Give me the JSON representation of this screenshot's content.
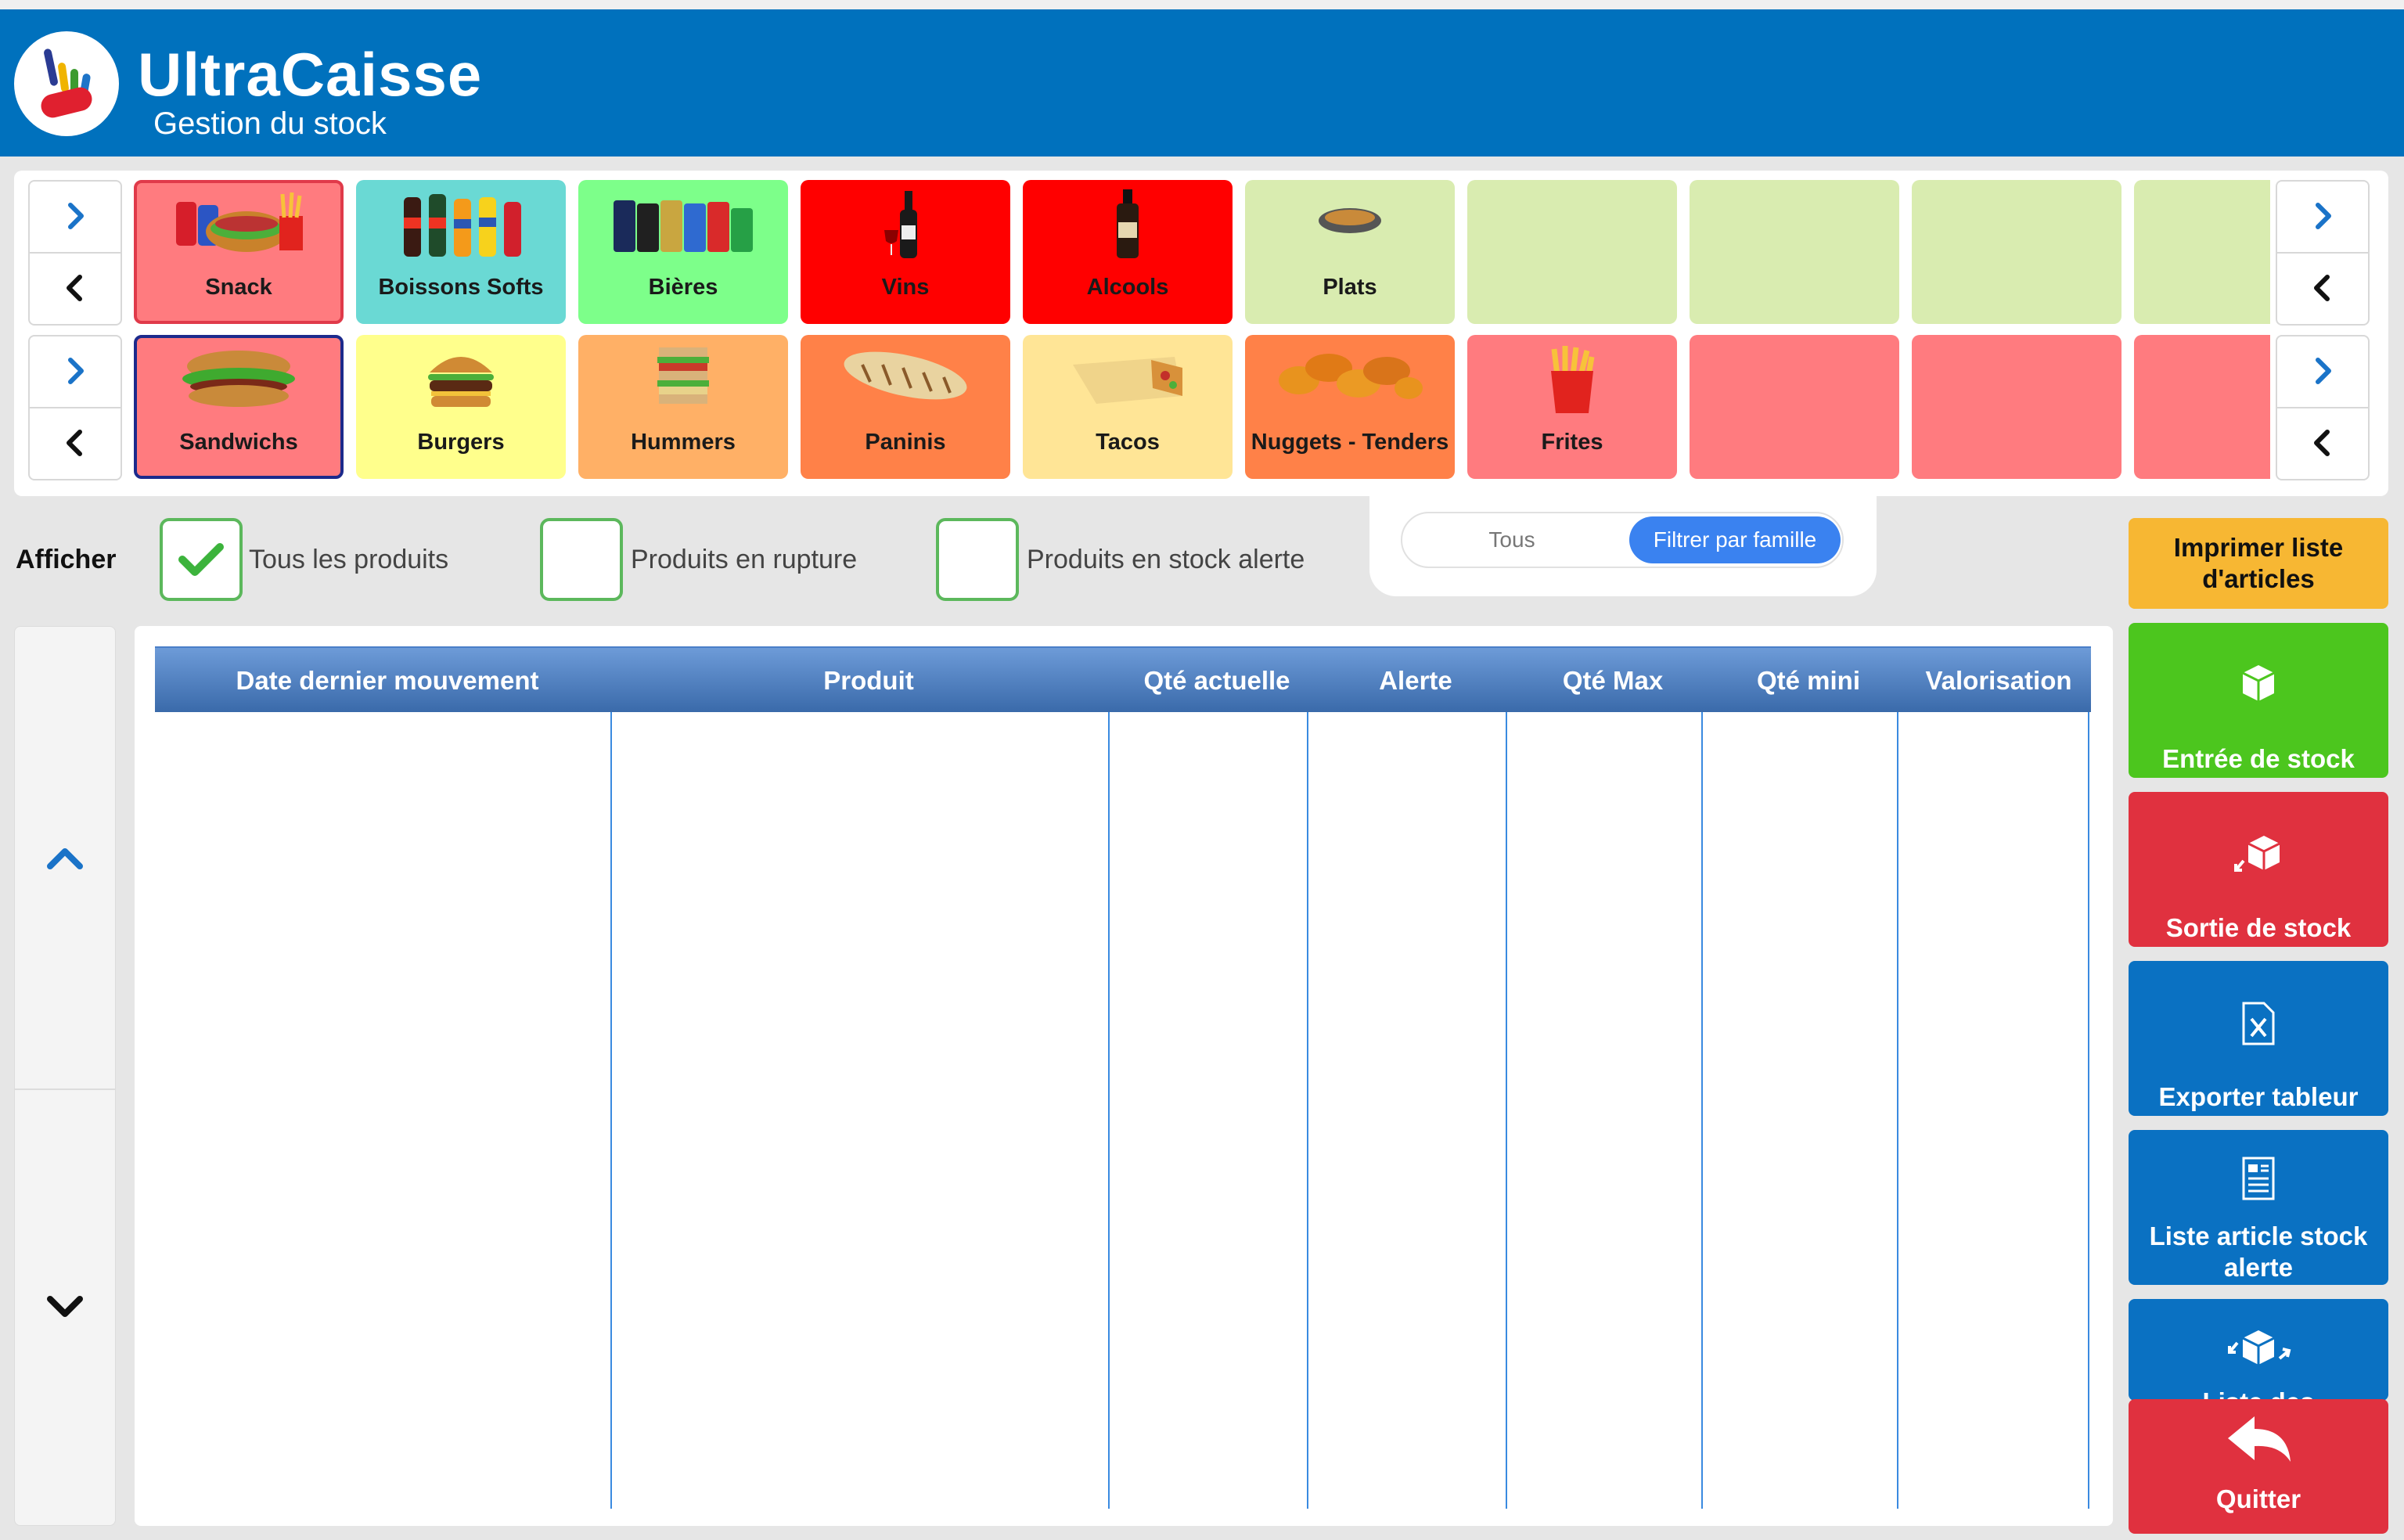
{
  "app": {
    "title": "UltraCaisse",
    "subtitle": "Gestion du stock",
    "brand_color": "#0071bd"
  },
  "families_row": {
    "tiles": [
      {
        "label": "Snack",
        "color": "#ff7b7f",
        "selected": true,
        "icon": "snack-image"
      },
      {
        "label": "Boissons Softs",
        "color": "#6ad9d4",
        "icon": "soft-drinks-image"
      },
      {
        "label": "Bières",
        "color": "#7dff8a",
        "icon": "beer-cans-image"
      },
      {
        "label": "Vins",
        "color": "#ff0000",
        "icon": "wine-bottle-image"
      },
      {
        "label": "Alcools",
        "color": "#ff0000",
        "icon": "liquor-bottle-image"
      },
      {
        "label": "Plats",
        "color": "#d9ecb0",
        "icon": "plate-image"
      },
      {
        "label": "",
        "color": "#d9ecb0"
      },
      {
        "label": "",
        "color": "#d9ecb0"
      },
      {
        "label": "",
        "color": "#d9ecb0"
      },
      {
        "label": "",
        "color": "#d9ecb0"
      }
    ]
  },
  "subfamilies_row": {
    "tiles": [
      {
        "label": "Sandwichs",
        "color": "#ff7b7f",
        "selected": true,
        "icon": "sandwich-image"
      },
      {
        "label": "Burgers",
        "color": "#ffff8c",
        "icon": "burger-image"
      },
      {
        "label": "Hummers",
        "color": "#ffb066",
        "icon": "club-sandwich-image"
      },
      {
        "label": "Paninis",
        "color": "#ff8148",
        "icon": "panini-image"
      },
      {
        "label": "Tacos",
        "color": "#ffe596",
        "icon": "tacos-image"
      },
      {
        "label": "Nuggets - Tenders",
        "color": "#ff8148",
        "icon": "nuggets-image"
      },
      {
        "label": "Frites",
        "color": "#ff7b7f",
        "icon": "fries-image"
      },
      {
        "label": "",
        "color": "#ff7b7f"
      },
      {
        "label": "",
        "color": "#ff7b7f"
      },
      {
        "label": "",
        "color": "#ff7b7f"
      }
    ]
  },
  "filters": {
    "afficher_label": "Afficher",
    "options": [
      {
        "label": "Tous les produits",
        "checked": true
      },
      {
        "label": "Produits en rupture",
        "checked": false
      },
      {
        "label": "Produits en stock alerte",
        "checked": false
      }
    ],
    "toggle": {
      "left": "Tous",
      "right": "Filtrer par famille",
      "active": "right"
    }
  },
  "table": {
    "columns": [
      "Date dernier mouvement",
      "Produit",
      "Qté actuelle",
      "Alerte",
      "Qté Max",
      "Qté mini",
      "Valorisation"
    ],
    "rows": []
  },
  "actions": {
    "print_list": "Imprimer liste d'articles",
    "stock_in": "Entrée de stock",
    "stock_out": "Sortie de stock",
    "export": "Exporter tableur",
    "alert_list": "Liste article stock alerte",
    "movements_list": "Liste des",
    "quit": "Quitter",
    "colors": {
      "print": "#f7b733",
      "in": "#4cc61e",
      "out": "#e0313f",
      "blue": "#0a71c2",
      "quit": "#e0313f"
    }
  }
}
